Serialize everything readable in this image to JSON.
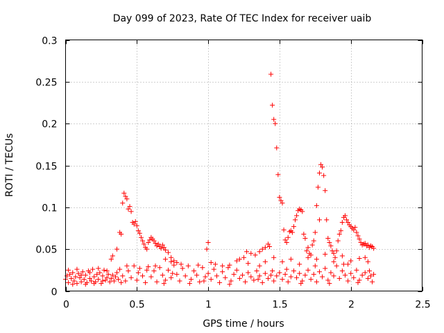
{
  "chart_data": {
    "type": "scatter",
    "title": "Day 099 of 2023, Rate Of TEC Index for receiver uaib",
    "xlabel": "GPS time / hours",
    "ylabel": "ROTI / TECUs",
    "xlim": [
      0,
      2.5
    ],
    "ylim": [
      0,
      0.3
    ],
    "xticks": [
      "0",
      "0.5",
      "1",
      "1.5",
      "2",
      "2.5"
    ],
    "yticks": [
      "0",
      "0.05",
      "0.1",
      "0.15",
      "0.2",
      "0.25",
      "0.3"
    ],
    "grid": true,
    "legend": "none",
    "marker": "plus",
    "color": "#ff0000",
    "series": [
      {
        "values": [
          [
            0.0,
            0.014
          ],
          [
            0.01,
            0.018
          ],
          [
            0.02,
            0.01
          ],
          [
            0.03,
            0.02
          ],
          [
            0.04,
            0.015
          ],
          [
            0.05,
            0.022
          ],
          [
            0.06,
            0.012
          ],
          [
            0.07,
            0.017
          ],
          [
            0.08,
            0.009
          ],
          [
            0.09,
            0.021
          ],
          [
            0.1,
            0.016
          ],
          [
            0.11,
            0.011
          ],
          [
            0.12,
            0.023
          ],
          [
            0.13,
            0.014
          ],
          [
            0.14,
            0.019
          ],
          [
            0.15,
            0.01
          ],
          [
            0.16,
            0.024
          ],
          [
            0.17,
            0.015
          ],
          [
            0.18,
            0.012
          ],
          [
            0.19,
            0.026
          ],
          [
            0.2,
            0.017
          ],
          [
            0.21,
            0.011
          ],
          [
            0.22,
            0.02
          ],
          [
            0.23,
            0.014
          ],
          [
            0.24,
            0.022
          ],
          [
            0.25,
            0.009
          ],
          [
            0.26,
            0.018
          ],
          [
            0.27,
            0.025
          ],
          [
            0.28,
            0.013
          ],
          [
            0.29,
            0.016
          ],
          [
            0.3,
            0.02
          ],
          [
            0.31,
            0.011
          ],
          [
            0.32,
            0.015
          ],
          [
            0.33,
            0.019
          ],
          [
            0.34,
            0.012
          ],
          [
            0.35,
            0.017
          ],
          [
            0.36,
            0.022
          ],
          [
            0.37,
            0.014
          ],
          [
            0.38,
            0.026
          ],
          [
            0.39,
            0.01
          ],
          [
            0.02,
            0.025
          ],
          [
            0.05,
            0.008
          ],
          [
            0.08,
            0.026
          ],
          [
            0.11,
            0.019
          ],
          [
            0.14,
            0.008
          ],
          [
            0.17,
            0.022
          ],
          [
            0.2,
            0.009
          ],
          [
            0.23,
            0.027
          ],
          [
            0.26,
            0.012
          ],
          [
            0.29,
            0.024
          ],
          [
            0.4,
            0.018
          ],
          [
            0.42,
            0.012
          ],
          [
            0.44,
            0.024
          ],
          [
            0.46,
            0.016
          ],
          [
            0.48,
            0.03
          ],
          [
            0.5,
            0.013
          ],
          [
            0.52,
            0.027
          ],
          [
            0.54,
            0.018
          ],
          [
            0.56,
            0.01
          ],
          [
            0.58,
            0.029
          ],
          [
            0.6,
            0.017
          ],
          [
            0.62,
            0.024
          ],
          [
            0.64,
            0.011
          ],
          [
            0.66,
            0.028
          ],
          [
            0.68,
            0.019
          ],
          [
            0.7,
            0.013
          ],
          [
            0.72,
            0.025
          ],
          [
            0.74,
            0.016
          ],
          [
            0.76,
            0.031
          ],
          [
            0.78,
            0.02
          ],
          [
            0.8,
            0.012
          ],
          [
            0.82,
            0.027
          ],
          [
            0.84,
            0.018
          ],
          [
            0.86,
            0.03
          ],
          [
            0.88,
            0.014
          ],
          [
            0.9,
            0.024
          ],
          [
            0.92,
            0.019
          ],
          [
            0.94,
            0.011
          ],
          [
            0.96,
            0.028
          ],
          [
            0.98,
            0.017
          ],
          [
            0.43,
            0.03
          ],
          [
            0.51,
            0.022
          ],
          [
            0.57,
            0.025
          ],
          [
            0.63,
            0.03
          ],
          [
            0.69,
            0.009
          ],
          [
            0.75,
            0.021
          ],
          [
            0.81,
            0.032
          ],
          [
            0.87,
            0.009
          ],
          [
            0.93,
            0.031
          ],
          [
            0.97,
            0.012
          ],
          [
            1.0,
            0.021
          ],
          [
            1.02,
            0.014
          ],
          [
            1.04,
            0.026
          ],
          [
            1.06,
            0.018
          ],
          [
            1.08,
            0.01
          ],
          [
            1.1,
            0.023
          ],
          [
            1.12,
            0.016
          ],
          [
            1.14,
            0.028
          ],
          [
            1.16,
            0.012
          ],
          [
            1.18,
            0.02
          ],
          [
            1.2,
            0.025
          ],
          [
            1.22,
            0.015
          ],
          [
            1.24,
            0.019
          ],
          [
            1.26,
            0.011
          ],
          [
            1.28,
            0.022
          ],
          [
            1.3,
            0.017
          ],
          [
            1.32,
            0.013
          ],
          [
            1.34,
            0.024
          ],
          [
            1.36,
            0.018
          ],
          [
            1.38,
            0.01
          ],
          [
            1.4,
            0.021
          ],
          [
            1.42,
            0.015
          ],
          [
            1.44,
            0.019
          ],
          [
            1.46,
            0.012
          ],
          [
            1.48,
            0.018
          ],
          [
            1.5,
            0.022
          ],
          [
            1.52,
            0.014
          ],
          [
            1.54,
            0.02
          ],
          [
            1.56,
            0.011
          ],
          [
            1.58,
            0.017
          ],
          [
            1.6,
            0.024
          ],
          [
            1.62,
            0.016
          ],
          [
            1.64,
            0.021
          ],
          [
            1.66,
            0.012
          ],
          [
            1.68,
            0.019
          ],
          [
            1.7,
            0.025
          ],
          [
            1.72,
            0.014
          ],
          [
            1.74,
            0.02
          ],
          [
            1.76,
            0.011
          ],
          [
            1.78,
            0.023
          ],
          [
            1.8,
            0.017
          ],
          [
            1.82,
            0.027
          ],
          [
            1.84,
            0.013
          ],
          [
            1.86,
            0.022
          ],
          [
            1.88,
            0.018
          ],
          [
            1.9,
            0.03
          ],
          [
            1.92,
            0.015
          ],
          [
            1.94,
            0.024
          ],
          [
            1.96,
            0.019
          ],
          [
            1.98,
            0.012
          ],
          [
            2.0,
            0.021
          ],
          [
            2.02,
            0.016
          ],
          [
            2.04,
            0.025
          ],
          [
            2.06,
            0.013
          ],
          [
            2.08,
            0.019
          ],
          [
            2.1,
            0.022
          ],
          [
            2.12,
            0.015
          ],
          [
            2.14,
            0.018
          ],
          [
            2.15,
            0.011
          ],
          [
            2.16,
            0.02
          ],
          [
            1.35,
            0.014
          ],
          [
            1.45,
            0.024
          ],
          [
            1.55,
            0.026
          ],
          [
            1.65,
            0.009
          ],
          [
            1.75,
            0.03
          ],
          [
            1.85,
            0.009
          ],
          [
            1.95,
            0.032
          ],
          [
            2.05,
            0.01
          ],
          [
            2.13,
            0.024
          ],
          [
            1.15,
            0.008
          ],
          [
            0.32,
            0.038
          ],
          [
            0.33,
            0.042
          ],
          [
            0.36,
            0.05
          ],
          [
            0.38,
            0.07
          ],
          [
            0.39,
            0.068
          ],
          [
            0.4,
            0.105
          ],
          [
            0.41,
            0.117
          ],
          [
            0.42,
            0.113
          ],
          [
            0.43,
            0.11
          ],
          [
            0.44,
            0.098
          ],
          [
            0.45,
            0.101
          ],
          [
            0.46,
            0.095
          ],
          [
            0.47,
            0.082
          ],
          [
            0.48,
            0.08
          ],
          [
            0.49,
            0.083
          ],
          [
            0.5,
            0.078
          ],
          [
            0.51,
            0.072
          ],
          [
            0.52,
            0.069
          ],
          [
            0.53,
            0.064
          ],
          [
            0.54,
            0.06
          ],
          [
            0.55,
            0.056
          ],
          [
            0.56,
            0.052
          ],
          [
            0.57,
            0.05
          ],
          [
            0.58,
            0.058
          ],
          [
            0.59,
            0.061
          ],
          [
            0.6,
            0.064
          ],
          [
            0.61,
            0.062
          ],
          [
            0.62,
            0.06
          ],
          [
            0.63,
            0.057
          ],
          [
            0.64,
            0.054
          ],
          [
            0.65,
            0.056
          ],
          [
            0.66,
            0.053
          ],
          [
            0.67,
            0.051
          ],
          [
            0.68,
            0.055
          ],
          [
            0.69,
            0.052
          ],
          [
            0.7,
            0.049
          ],
          [
            0.72,
            0.046
          ],
          [
            0.74,
            0.04
          ],
          [
            0.76,
            0.036
          ],
          [
            0.78,
            0.034
          ],
          [
            0.99,
            0.05
          ],
          [
            1.0,
            0.058
          ],
          [
            1.02,
            0.034
          ],
          [
            1.05,
            0.032
          ],
          [
            1.1,
            0.03
          ],
          [
            1.15,
            0.031
          ],
          [
            1.2,
            0.036
          ],
          [
            1.25,
            0.04
          ],
          [
            1.27,
            0.047
          ],
          [
            1.3,
            0.045
          ],
          [
            1.33,
            0.043
          ],
          [
            1.36,
            0.047
          ],
          [
            1.38,
            0.05
          ],
          [
            1.4,
            0.052
          ],
          [
            1.42,
            0.056
          ],
          [
            1.43,
            0.053
          ],
          [
            1.44,
            0.259
          ],
          [
            1.45,
            0.222
          ],
          [
            1.46,
            0.205
          ],
          [
            1.47,
            0.2
          ],
          [
            1.48,
            0.171
          ],
          [
            1.49,
            0.139
          ],
          [
            1.5,
            0.112
          ],
          [
            1.51,
            0.108
          ],
          [
            1.52,
            0.105
          ],
          [
            1.53,
            0.073
          ],
          [
            1.54,
            0.061
          ],
          [
            1.55,
            0.058
          ],
          [
            1.56,
            0.064
          ],
          [
            1.57,
            0.071
          ],
          [
            1.58,
            0.072
          ],
          [
            1.59,
            0.07
          ],
          [
            1.6,
            0.077
          ],
          [
            1.61,
            0.085
          ],
          [
            1.62,
            0.09
          ],
          [
            1.63,
            0.096
          ],
          [
            1.64,
            0.098
          ],
          [
            1.65,
            0.097
          ],
          [
            1.66,
            0.095
          ],
          [
            1.67,
            0.068
          ],
          [
            1.68,
            0.063
          ],
          [
            1.69,
            0.048
          ],
          [
            1.7,
            0.052
          ],
          [
            1.71,
            0.045
          ],
          [
            1.72,
            0.043
          ],
          [
            1.73,
            0.055
          ],
          [
            1.74,
            0.06
          ],
          [
            1.75,
            0.07
          ],
          [
            1.76,
            0.102
          ],
          [
            1.77,
            0.124
          ],
          [
            1.78,
            0.141
          ],
          [
            1.79,
            0.151
          ],
          [
            1.8,
            0.148
          ],
          [
            1.81,
            0.138
          ],
          [
            1.82,
            0.12
          ],
          [
            1.83,
            0.085
          ],
          [
            1.84,
            0.063
          ],
          [
            1.85,
            0.058
          ],
          [
            1.86,
            0.054
          ],
          [
            1.87,
            0.048
          ],
          [
            1.88,
            0.045
          ],
          [
            1.89,
            0.04
          ],
          [
            1.9,
            0.048
          ],
          [
            1.91,
            0.06
          ],
          [
            1.92,
            0.068
          ],
          [
            1.93,
            0.072
          ],
          [
            1.94,
            0.082
          ],
          [
            1.95,
            0.088
          ],
          [
            1.96,
            0.09
          ],
          [
            1.97,
            0.085
          ],
          [
            1.98,
            0.082
          ],
          [
            1.99,
            0.079
          ],
          [
            2.0,
            0.077
          ],
          [
            2.01,
            0.075
          ],
          [
            2.02,
            0.073
          ],
          [
            2.03,
            0.076
          ],
          [
            2.04,
            0.07
          ],
          [
            2.05,
            0.066
          ],
          [
            2.06,
            0.062
          ],
          [
            2.07,
            0.058
          ],
          [
            2.08,
            0.055
          ],
          [
            2.09,
            0.056
          ],
          [
            2.1,
            0.057
          ],
          [
            2.11,
            0.054
          ],
          [
            2.12,
            0.055
          ],
          [
            2.13,
            0.052
          ],
          [
            2.14,
            0.054
          ],
          [
            2.15,
            0.053
          ],
          [
            2.16,
            0.051
          ],
          [
            1.78,
            0.085
          ],
          [
            1.4,
            0.035
          ],
          [
            1.46,
            0.04
          ],
          [
            1.52,
            0.035
          ],
          [
            1.58,
            0.038
          ],
          [
            1.64,
            0.032
          ],
          [
            1.7,
            0.04
          ],
          [
            1.76,
            0.038
          ],
          [
            1.82,
            0.044
          ],
          [
            1.88,
            0.035
          ],
          [
            1.94,
            0.042
          ],
          [
            2.0,
            0.036
          ],
          [
            2.06,
            0.039
          ],
          [
            2.12,
            0.035
          ],
          [
            1.22,
            0.038
          ],
          [
            1.28,
            0.033
          ],
          [
            0.7,
            0.038
          ],
          [
            0.74,
            0.035
          ],
          [
            1.36,
            0.03
          ],
          [
            1.98,
            0.032
          ],
          [
            2.1,
            0.04
          ]
        ]
      }
    ]
  }
}
